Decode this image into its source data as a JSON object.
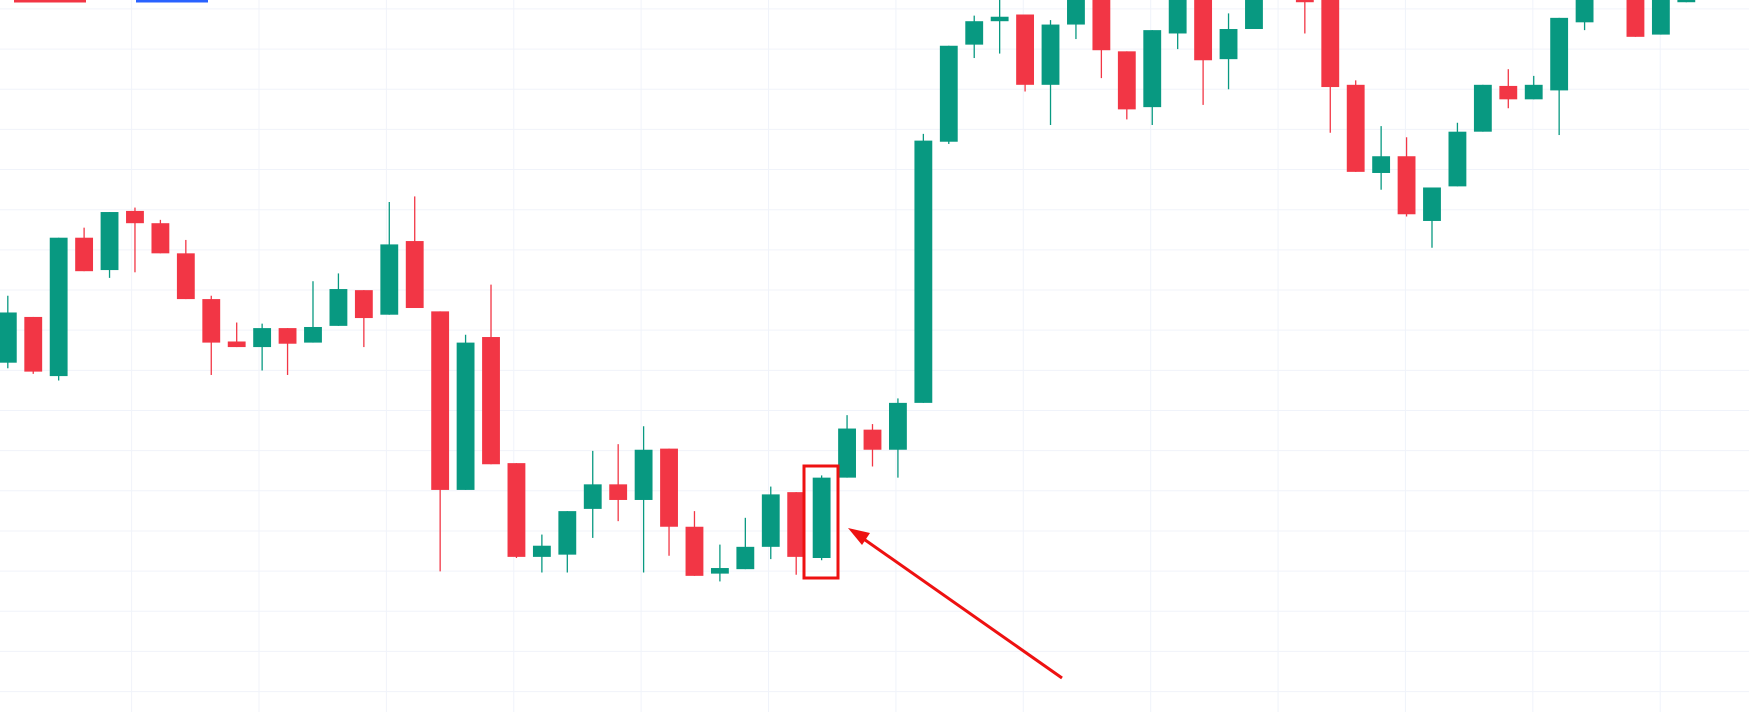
{
  "chart_data": {
    "type": "candlestick",
    "up_color": "#089981",
    "down_color": "#f23645",
    "ylim": [
      0,
      638
    ],
    "grid": true,
    "open": [
      313,
      354,
      301,
      425,
      396,
      449,
      438,
      411,
      370,
      332,
      327,
      344,
      331,
      346,
      378,
      356,
      422,
      359,
      199,
      336,
      223,
      139,
      141,
      182,
      204,
      190,
      236,
      166,
      124,
      128,
      148,
      197,
      138,
      210,
      253,
      235,
      277,
      511,
      598,
      619,
      625,
      562,
      616,
      638,
      592,
      542,
      608,
      638,
      585,
      612,
      null,
      638,
      638,
      562,
      483,
      498,
      440,
      471,
      520,
      561,
      549,
      557,
      618,
      null,
      638,
      607,
      636
    ],
    "high": [
      373,
      354,
      425,
      434,
      448,
      452,
      441,
      423,
      373,
      349,
      348,
      344,
      386,
      393,
      378,
      457,
      462,
      359,
      338,
      383,
      223,
      159,
      180,
      234,
      240,
      256,
      236,
      180,
      150,
      174,
      202,
      197,
      212,
      266,
      258,
      281,
      518,
      597,
      624,
      638,
      625,
      620,
      638,
      638,
      592,
      611,
      638,
      638,
      626,
      638,
      null,
      638,
      638,
      566,
      525,
      515,
      470,
      528,
      562,
      576,
      570,
      622,
      638,
      null,
      638,
      638,
      638
    ],
    "low": [
      308,
      303,
      297,
      395,
      389,
      394,
      411,
      370,
      302,
      327,
      306,
      302,
      331,
      346,
      327,
      356,
      362,
      126,
      199,
      222,
      138,
      125,
      125,
      156,
      171,
      125,
      140,
      122,
      117,
      128,
      137,
      123,
      136,
      210,
      220,
      210,
      277,
      509,
      586,
      590,
      556,
      526,
      603,
      568,
      531,
      526,
      594,
      544,
      558,
      612,
      null,
      608,
      519,
      484,
      468,
      444,
      416,
      471,
      520,
      541,
      549,
      517,
      611,
      null,
      605,
      607,
      636
    ],
    "close": [
      358,
      305,
      425,
      395,
      448,
      438,
      411,
      370,
      331,
      327,
      344,
      330,
      345,
      379,
      353,
      419,
      362,
      199,
      331,
      222,
      139,
      149,
      180,
      204,
      190,
      235,
      166,
      122,
      129,
      148,
      195,
      139,
      210,
      254,
      235,
      277,
      512,
      597,
      619,
      623,
      562,
      616,
      638,
      593,
      540,
      611,
      638,
      584,
      612,
      638,
      null,
      636,
      560,
      484,
      498,
      446,
      470,
      520,
      562,
      549,
      562,
      622,
      638,
      null,
      605,
      638,
      638
    ]
  }
}
